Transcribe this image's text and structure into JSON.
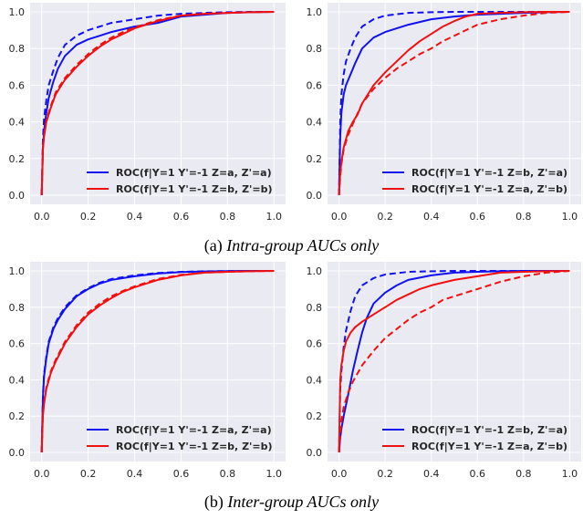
{
  "captions": {
    "a_label": "(a)",
    "a_text": "Intra-group AUCs only",
    "b_label": "(b)",
    "b_text": "Inter-group AUCs only"
  },
  "colors": {
    "blue": "#1010f0",
    "red": "#f01010",
    "panel_bg": "#eaeaf2",
    "grid": "#ffffff"
  },
  "chart_data": [
    {
      "type": "line",
      "xlim": [
        0,
        1
      ],
      "ylim": [
        0,
        1
      ],
      "xticks": [
        "0.0",
        "0.2",
        "0.4",
        "0.6",
        "0.8",
        "1.0"
      ],
      "yticks": [
        "0.0",
        "0.2",
        "0.4",
        "0.6",
        "0.8",
        "1.0"
      ],
      "grid": true,
      "legend_position": "lower-right",
      "series": [
        {
          "name": "ROC(f|Y=1 Y'=-1 Z=a, Z'=a)",
          "color": "blue",
          "style": "solid",
          "x": [
            0,
            0.005,
            0.01,
            0.02,
            0.03,
            0.05,
            0.07,
            0.1,
            0.15,
            0.2,
            0.25,
            0.3,
            0.4,
            0.5,
            0.6,
            0.7,
            0.8,
            0.9,
            1.0
          ],
          "y": [
            0,
            0.25,
            0.35,
            0.45,
            0.53,
            0.62,
            0.69,
            0.76,
            0.82,
            0.85,
            0.87,
            0.89,
            0.92,
            0.94,
            0.975,
            0.985,
            0.995,
            0.998,
            1.0
          ]
        },
        {
          "name": "",
          "color": "blue",
          "style": "dashed",
          "x": [
            0,
            0.005,
            0.01,
            0.02,
            0.03,
            0.05,
            0.07,
            0.1,
            0.15,
            0.2,
            0.3,
            0.4,
            0.5,
            0.6,
            0.7,
            0.8,
            0.9,
            1.0
          ],
          "y": [
            0,
            0.3,
            0.42,
            0.52,
            0.6,
            0.68,
            0.75,
            0.82,
            0.87,
            0.9,
            0.94,
            0.96,
            0.98,
            0.99,
            0.995,
            0.998,
            1.0,
            1.0
          ]
        },
        {
          "name": "ROC(f|Y=1 Y'=-1 Z=b, Z'=b)",
          "color": "red",
          "style": "solid",
          "x": [
            0,
            0.005,
            0.01,
            0.02,
            0.04,
            0.06,
            0.1,
            0.15,
            0.2,
            0.25,
            0.3,
            0.35,
            0.4,
            0.5,
            0.6,
            0.7,
            0.8,
            0.9,
            1.0
          ],
          "y": [
            0,
            0.25,
            0.32,
            0.4,
            0.48,
            0.55,
            0.63,
            0.7,
            0.76,
            0.81,
            0.85,
            0.88,
            0.91,
            0.95,
            0.98,
            0.99,
            0.995,
            0.998,
            1.0
          ]
        },
        {
          "name": "",
          "color": "red",
          "style": "dashed",
          "x": [
            0,
            0.005,
            0.01,
            0.02,
            0.04,
            0.06,
            0.1,
            0.15,
            0.2,
            0.25,
            0.3,
            0.35,
            0.4,
            0.5,
            0.6,
            0.7,
            0.8,
            0.9,
            1.0
          ],
          "y": [
            0,
            0.26,
            0.33,
            0.41,
            0.49,
            0.56,
            0.64,
            0.71,
            0.77,
            0.82,
            0.86,
            0.89,
            0.915,
            0.955,
            0.98,
            0.99,
            0.995,
            0.998,
            1.0
          ]
        }
      ]
    },
    {
      "type": "line",
      "xlim": [
        0,
        1
      ],
      "ylim": [
        0,
        1
      ],
      "xticks": [
        "0.0",
        "0.2",
        "0.4",
        "0.6",
        "0.8",
        "1.0"
      ],
      "yticks": [
        "0.0",
        "0.2",
        "0.4",
        "0.6",
        "0.8",
        "1.0"
      ],
      "grid": true,
      "legend_position": "lower-right",
      "series": [
        {
          "name": "ROC(f|Y=1 Y'=-1 Z=b, Z'=a)",
          "color": "blue",
          "style": "solid",
          "x": [
            0,
            0.005,
            0.01,
            0.02,
            0.03,
            0.05,
            0.07,
            0.1,
            0.15,
            0.2,
            0.3,
            0.4,
            0.5,
            0.6,
            0.7,
            0.8,
            0.9,
            1.0
          ],
          "y": [
            0,
            0.32,
            0.45,
            0.55,
            0.6,
            0.66,
            0.72,
            0.8,
            0.86,
            0.89,
            0.93,
            0.96,
            0.975,
            0.985,
            0.99,
            0.995,
            0.998,
            1.0
          ]
        },
        {
          "name": "",
          "color": "blue",
          "style": "dashed",
          "x": [
            0,
            0.005,
            0.01,
            0.02,
            0.03,
            0.05,
            0.07,
            0.1,
            0.15,
            0.2,
            0.3,
            0.4,
            0.5,
            0.6,
            0.7,
            0.8,
            0.9,
            1.0
          ],
          "y": [
            0,
            0.4,
            0.55,
            0.66,
            0.73,
            0.8,
            0.86,
            0.92,
            0.96,
            0.98,
            0.995,
            0.998,
            1.0,
            1.0,
            1.0,
            1.0,
            1.0,
            1.0
          ]
        },
        {
          "name": "ROC(f|Y=1 Y'=-1 Z=a, Z'=b)",
          "color": "red",
          "style": "solid",
          "x": [
            0,
            0.005,
            0.01,
            0.02,
            0.04,
            0.06,
            0.08,
            0.1,
            0.15,
            0.2,
            0.25,
            0.3,
            0.35,
            0.4,
            0.45,
            0.5,
            0.55,
            0.6,
            0.7,
            0.8,
            0.9,
            1.0
          ],
          "y": [
            0,
            0.12,
            0.18,
            0.26,
            0.35,
            0.4,
            0.44,
            0.5,
            0.6,
            0.67,
            0.73,
            0.79,
            0.84,
            0.88,
            0.92,
            0.95,
            0.975,
            0.99,
            0.995,
            0.998,
            1.0,
            1.0
          ]
        },
        {
          "name": "",
          "color": "red",
          "style": "dashed",
          "x": [
            0,
            0.005,
            0.01,
            0.02,
            0.04,
            0.06,
            0.1,
            0.15,
            0.2,
            0.25,
            0.3,
            0.35,
            0.4,
            0.45,
            0.5,
            0.55,
            0.6,
            0.7,
            0.8,
            0.9,
            1.0
          ],
          "y": [
            0,
            0.1,
            0.17,
            0.25,
            0.33,
            0.39,
            0.5,
            0.58,
            0.64,
            0.69,
            0.73,
            0.77,
            0.8,
            0.84,
            0.87,
            0.9,
            0.93,
            0.96,
            0.98,
            0.995,
            1.0
          ]
        }
      ]
    },
    {
      "type": "line",
      "xlim": [
        0,
        1
      ],
      "ylim": [
        0,
        1
      ],
      "xticks": [
        "0.0",
        "0.2",
        "0.4",
        "0.6",
        "0.8",
        "1.0"
      ],
      "yticks": [
        "0.0",
        "0.2",
        "0.4",
        "0.6",
        "0.8",
        "1.0"
      ],
      "grid": true,
      "legend_position": "lower-right",
      "series": [
        {
          "name": "ROC(f|Y=1 Y'=-1 Z=a, Z'=a)",
          "color": "blue",
          "style": "solid",
          "x": [
            0,
            0.005,
            0.01,
            0.02,
            0.03,
            0.05,
            0.07,
            0.1,
            0.15,
            0.2,
            0.25,
            0.3,
            0.4,
            0.5,
            0.6,
            0.7,
            0.8,
            0.9,
            1.0
          ],
          "y": [
            0,
            0.3,
            0.42,
            0.52,
            0.6,
            0.68,
            0.73,
            0.79,
            0.86,
            0.9,
            0.93,
            0.95,
            0.97,
            0.985,
            0.993,
            0.997,
            0.999,
            1.0,
            1.0
          ]
        },
        {
          "name": "",
          "color": "blue",
          "style": "dashed",
          "x": [
            0,
            0.005,
            0.01,
            0.02,
            0.03,
            0.05,
            0.07,
            0.1,
            0.15,
            0.2,
            0.25,
            0.3,
            0.4,
            0.5,
            0.6,
            0.7,
            0.8,
            0.9,
            1.0
          ],
          "y": [
            0,
            0.31,
            0.43,
            0.53,
            0.61,
            0.69,
            0.74,
            0.8,
            0.865,
            0.905,
            0.935,
            0.955,
            0.975,
            0.988,
            0.995,
            0.998,
            0.999,
            1.0,
            1.0
          ]
        },
        {
          "name": "ROC(f|Y=1 Y'=-1 Z=b, Z'=b)",
          "color": "red",
          "style": "solid",
          "x": [
            0,
            0.005,
            0.01,
            0.02,
            0.04,
            0.06,
            0.1,
            0.15,
            0.2,
            0.25,
            0.3,
            0.35,
            0.4,
            0.5,
            0.6,
            0.7,
            0.8,
            0.9,
            1.0
          ],
          "y": [
            0,
            0.2,
            0.27,
            0.35,
            0.44,
            0.5,
            0.6,
            0.69,
            0.76,
            0.81,
            0.85,
            0.885,
            0.91,
            0.95,
            0.975,
            0.99,
            0.995,
            0.998,
            1.0
          ]
        },
        {
          "name": "",
          "color": "red",
          "style": "dashed",
          "x": [
            0,
            0.005,
            0.01,
            0.02,
            0.04,
            0.06,
            0.1,
            0.15,
            0.2,
            0.25,
            0.3,
            0.35,
            0.4,
            0.5,
            0.6,
            0.7,
            0.8,
            0.9,
            1.0
          ],
          "y": [
            0,
            0.21,
            0.28,
            0.36,
            0.45,
            0.51,
            0.61,
            0.7,
            0.77,
            0.82,
            0.86,
            0.89,
            0.915,
            0.955,
            0.978,
            0.99,
            0.995,
            0.998,
            1.0
          ]
        }
      ]
    },
    {
      "type": "line",
      "xlim": [
        0,
        1
      ],
      "ylim": [
        0,
        1
      ],
      "xticks": [
        "0.0",
        "0.2",
        "0.4",
        "0.6",
        "0.8",
        "1.0"
      ],
      "yticks": [
        "0.0",
        "0.2",
        "0.4",
        "0.6",
        "0.8",
        "1.0"
      ],
      "grid": true,
      "legend_position": "lower-right",
      "series": [
        {
          "name": "ROC(f|Y=1 Y'=-1 Z=b, Z'=a)",
          "color": "blue",
          "style": "solid",
          "x": [
            0,
            0.005,
            0.01,
            0.02,
            0.04,
            0.06,
            0.08,
            0.1,
            0.12,
            0.15,
            0.2,
            0.25,
            0.3,
            0.4,
            0.5,
            0.6,
            0.7,
            0.8,
            0.9,
            1.0
          ],
          "y": [
            0,
            0.08,
            0.13,
            0.2,
            0.32,
            0.45,
            0.56,
            0.66,
            0.74,
            0.82,
            0.88,
            0.92,
            0.95,
            0.975,
            0.99,
            0.995,
            0.998,
            1.0,
            1.0,
            1.0
          ]
        },
        {
          "name": "",
          "color": "blue",
          "style": "dashed",
          "x": [
            0,
            0.005,
            0.01,
            0.02,
            0.03,
            0.05,
            0.07,
            0.1,
            0.15,
            0.2,
            0.3,
            0.4,
            0.5,
            0.6,
            0.7,
            0.8,
            0.9,
            1.0
          ],
          "y": [
            0,
            0.35,
            0.45,
            0.58,
            0.67,
            0.78,
            0.86,
            0.92,
            0.96,
            0.98,
            0.995,
            0.998,
            1.0,
            1.0,
            1.0,
            1.0,
            1.0,
            1.0
          ]
        },
        {
          "name": "ROC(f|Y=1 Y'=-1 Z=a, Z'=b)",
          "color": "red",
          "style": "solid",
          "x": [
            0,
            0.005,
            0.01,
            0.02,
            0.03,
            0.05,
            0.07,
            0.1,
            0.15,
            0.2,
            0.25,
            0.3,
            0.35,
            0.4,
            0.5,
            0.6,
            0.7,
            0.8,
            0.9,
            1.0
          ],
          "y": [
            0,
            0.4,
            0.48,
            0.56,
            0.61,
            0.66,
            0.69,
            0.72,
            0.76,
            0.8,
            0.84,
            0.87,
            0.9,
            0.92,
            0.95,
            0.97,
            0.99,
            0.995,
            0.998,
            1.0
          ]
        },
        {
          "name": "",
          "color": "red",
          "style": "dashed",
          "x": [
            0,
            0.005,
            0.01,
            0.02,
            0.04,
            0.06,
            0.1,
            0.15,
            0.2,
            0.25,
            0.3,
            0.35,
            0.4,
            0.45,
            0.5,
            0.6,
            0.7,
            0.8,
            0.9,
            1.0
          ],
          "y": [
            0,
            0.1,
            0.17,
            0.25,
            0.33,
            0.39,
            0.48,
            0.56,
            0.63,
            0.68,
            0.73,
            0.77,
            0.8,
            0.84,
            0.86,
            0.9,
            0.94,
            0.97,
            0.99,
            1.0
          ]
        }
      ]
    }
  ]
}
